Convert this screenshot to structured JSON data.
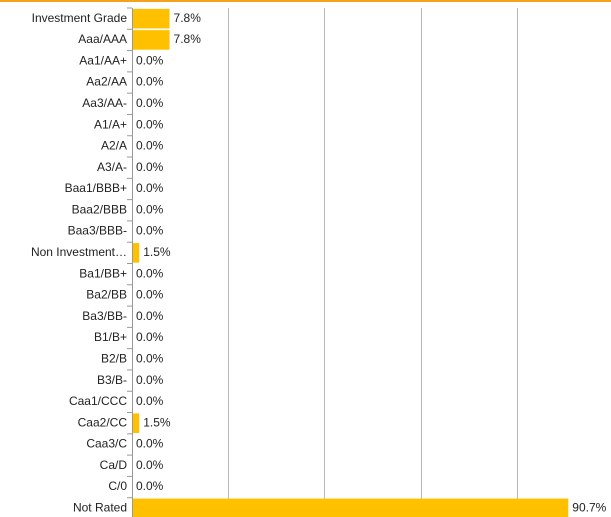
{
  "chart_data": {
    "type": "bar",
    "orientation": "horizontal",
    "categories": [
      "Investment Grade",
      "Aaa/AAA",
      "Aa1/AA+",
      "Aa2/AA",
      "Aa3/AA-",
      "A1/A+",
      "A2/A",
      "A3/A-",
      "Baa1/BBB+",
      "Baa2/BBB",
      "Baa3/BBB-",
      "Non Investment…",
      "Ba1/BB+",
      "Ba2/BB",
      "Ba3/BB-",
      "B1/B+",
      "B2/B",
      "B3/B-",
      "Caa1/CCC",
      "Caa2/CC",
      "Caa3/C",
      "Ca/D",
      "C/0",
      "Not Rated"
    ],
    "values": [
      7.8,
      7.8,
      0,
      0,
      0,
      0,
      0,
      0,
      0,
      0,
      0,
      1.5,
      0,
      0,
      0,
      0,
      0,
      0,
      0,
      1.5,
      0,
      0,
      0,
      90.7
    ],
    "value_labels": [
      "7.8%",
      "7.8%",
      "0.0%",
      "0.0%",
      "0.0%",
      "0.0%",
      "0.0%",
      "0.0%",
      "0.0%",
      "0.0%",
      "0.0%",
      "1.5%",
      "0.0%",
      "0.0%",
      "0.0%",
      "0.0%",
      "0.0%",
      "0.0%",
      "0.0%",
      "1.5%",
      "0.0%",
      "0.0%",
      "0.0%",
      "90.7%"
    ],
    "color": "#ffc000",
    "xlim": [
      0,
      100
    ],
    "xticks": [
      20,
      40,
      60,
      80
    ],
    "grid": true
  }
}
